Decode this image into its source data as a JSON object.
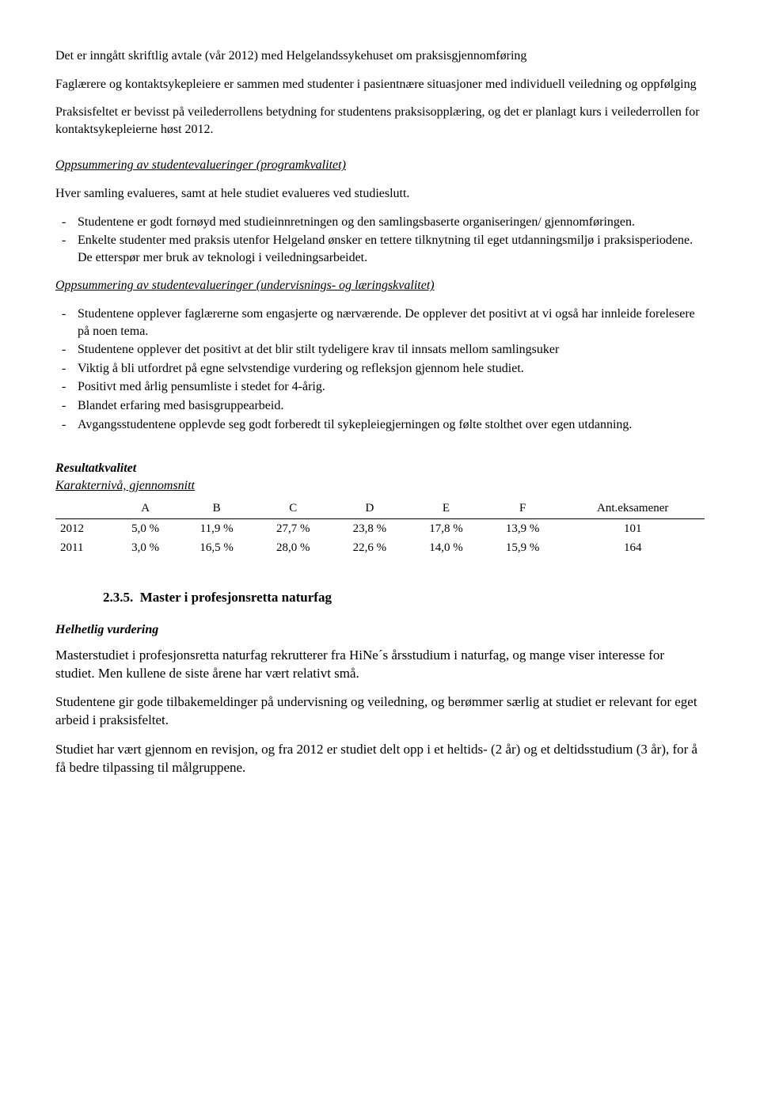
{
  "intro": {
    "p1": "Det er inngått skriftlig avtale (vår 2012) med Helgelandssykehuset om praksisgjennomføring",
    "p2": "Faglærere og kontaktsykepleiere er sammen med studenter i pasientnære situasjoner med individuell veiledning og oppfølging",
    "p3": "Praksisfeltet er bevisst på veilederrollens betydning for studentens praksisopplæring, og det er planlagt kurs i veilederrollen for kontaktsykepleierne høst 2012."
  },
  "section1": {
    "heading": "Oppsummering av studentevalueringer (programkvalitet)",
    "lead": "Hver samling evalueres, samt at hele studiet evalueres ved studieslutt.",
    "items": [
      "Studentene er godt fornøyd med studieinnretningen og den samlingsbaserte organiseringen/ gjennomføringen.",
      "Enkelte studenter med praksis utenfor Helgeland ønsker en tettere tilknytning til eget utdanningsmiljø i praksisperiodene. De etterspør mer bruk av teknologi i veiledningsarbeidet."
    ]
  },
  "section2": {
    "heading": "Oppsummering av studentevalueringer (undervisnings- og læringskvalitet)",
    "items": [
      "Studentene opplever faglærerne som engasjerte og nærværende. De opplever det positivt at vi også har innleide forelesere på noen tema.",
      "Studentene opplever det positivt at det blir stilt tydeligere krav til innsats mellom samlingsuker",
      "Viktig å bli utfordret på egne selvstendige vurdering og refleksjon gjennom hele studiet.",
      "Positivt med årlig pensumliste i stedet for 4-årig.",
      "Blandet erfaring med basisgruppearbeid.",
      "Avgangsstudentene opplevde seg godt forberedt til sykepleiegjerningen og følte stolthet over egen utdanning."
    ]
  },
  "results": {
    "heading": "Resultatkvalitet",
    "subheading": "Karakternivå, gjennomsnitt",
    "table": {
      "columns": [
        "A",
        "B",
        "C",
        "D",
        "E",
        "F",
        "Ant.eksamener"
      ],
      "rows": [
        {
          "year": "2012",
          "vals": [
            "5,0 %",
            "11,9 %",
            "27,7 %",
            "23,8 %",
            "17,8 %",
            "13,9 %",
            "101"
          ]
        },
        {
          "year": "2011",
          "vals": [
            "3,0 %",
            "16,5 %",
            "28,0 %",
            "22,6 %",
            "14,0 %",
            "15,9 %",
            "164"
          ]
        }
      ]
    }
  },
  "master": {
    "number": "2.3.5.",
    "title": "Master i profesjonsretta naturfag",
    "subheading": "Helhetlig vurdering",
    "p1": "Masterstudiet i profesjonsretta naturfag rekrutterer fra HiNe´s årsstudium i naturfag, og mange viser interesse for studiet. Men kullene de siste årene har vært relativt små.",
    "p2": "Studentene gir gode tilbakemeldinger på undervisning og veiledning, og berømmer særlig at studiet er relevant for eget arbeid i praksisfeltet.",
    "p3": "Studiet har vært gjennom en revisjon, og fra 2012 er studiet delt opp i et heltids- (2 år) og et deltidsstudium (3 år), for å få bedre tilpassing til målgruppene."
  }
}
